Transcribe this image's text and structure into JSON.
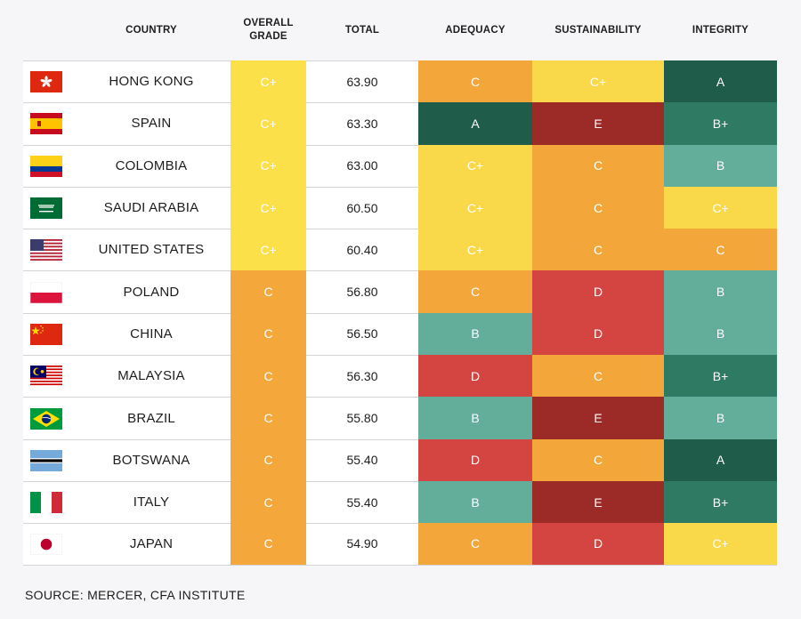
{
  "chart_data": {
    "type": "table",
    "headers": {
      "country": "COUNTRY",
      "overall": "OVERALL GRADE",
      "total": "TOTAL",
      "adequacy": "ADEQUACY",
      "sustainability": "SUSTAINABILITY",
      "integrity": "INTEGRITY"
    },
    "rows": [
      {
        "country": "HONG KONG",
        "flag": "hong-kong",
        "overall": "C+",
        "total": "63.90",
        "adequacy": "C",
        "sustainability": "C+",
        "integrity": "A"
      },
      {
        "country": "SPAIN",
        "flag": "spain",
        "overall": "C+",
        "total": "63.30",
        "adequacy": "A",
        "sustainability": "E",
        "integrity": "B+"
      },
      {
        "country": "COLOMBIA",
        "flag": "colombia",
        "overall": "C+",
        "total": "63.00",
        "adequacy": "C+",
        "sustainability": "C",
        "integrity": "B"
      },
      {
        "country": "SAUDI ARABIA",
        "flag": "saudi-arabia",
        "overall": "C+",
        "total": "60.50",
        "adequacy": "C+",
        "sustainability": "C",
        "integrity": "C+"
      },
      {
        "country": "UNITED STATES",
        "flag": "united-states",
        "overall": "C+",
        "total": "60.40",
        "adequacy": "C+",
        "sustainability": "C",
        "integrity": "C"
      },
      {
        "country": "POLAND",
        "flag": "poland",
        "overall": "C",
        "total": "56.80",
        "adequacy": "C",
        "sustainability": "D",
        "integrity": "B"
      },
      {
        "country": "CHINA",
        "flag": "china",
        "overall": "C",
        "total": "56.50",
        "adequacy": "B",
        "sustainability": "D",
        "integrity": "B"
      },
      {
        "country": "MALAYSIA",
        "flag": "malaysia",
        "overall": "C",
        "total": "56.30",
        "adequacy": "D",
        "sustainability": "C",
        "integrity": "B+"
      },
      {
        "country": "BRAZIL",
        "flag": "brazil",
        "overall": "C",
        "total": "55.80",
        "adequacy": "B",
        "sustainability": "E",
        "integrity": "B"
      },
      {
        "country": "BOTSWANA",
        "flag": "botswana",
        "overall": "C",
        "total": "55.40",
        "adequacy": "D",
        "sustainability": "C",
        "integrity": "A"
      },
      {
        "country": "ITALY",
        "flag": "italy",
        "overall": "C",
        "total": "55.40",
        "adequacy": "B",
        "sustainability": "E",
        "integrity": "B+"
      },
      {
        "country": "JAPAN",
        "flag": "japan",
        "overall": "C",
        "total": "54.90",
        "adequacy": "C",
        "sustainability": "D",
        "integrity": "C+"
      }
    ],
    "grade_colors": {
      "A": "#1f5c4a",
      "B+": "#2f7a62",
      "B": "#63ad9b",
      "C+": "#f9d949",
      "C": "#f3a73b",
      "D": "#d44541",
      "E": "#9c2a27"
    }
  },
  "source": "SOURCE: MERCER, CFA INSTITUTE"
}
